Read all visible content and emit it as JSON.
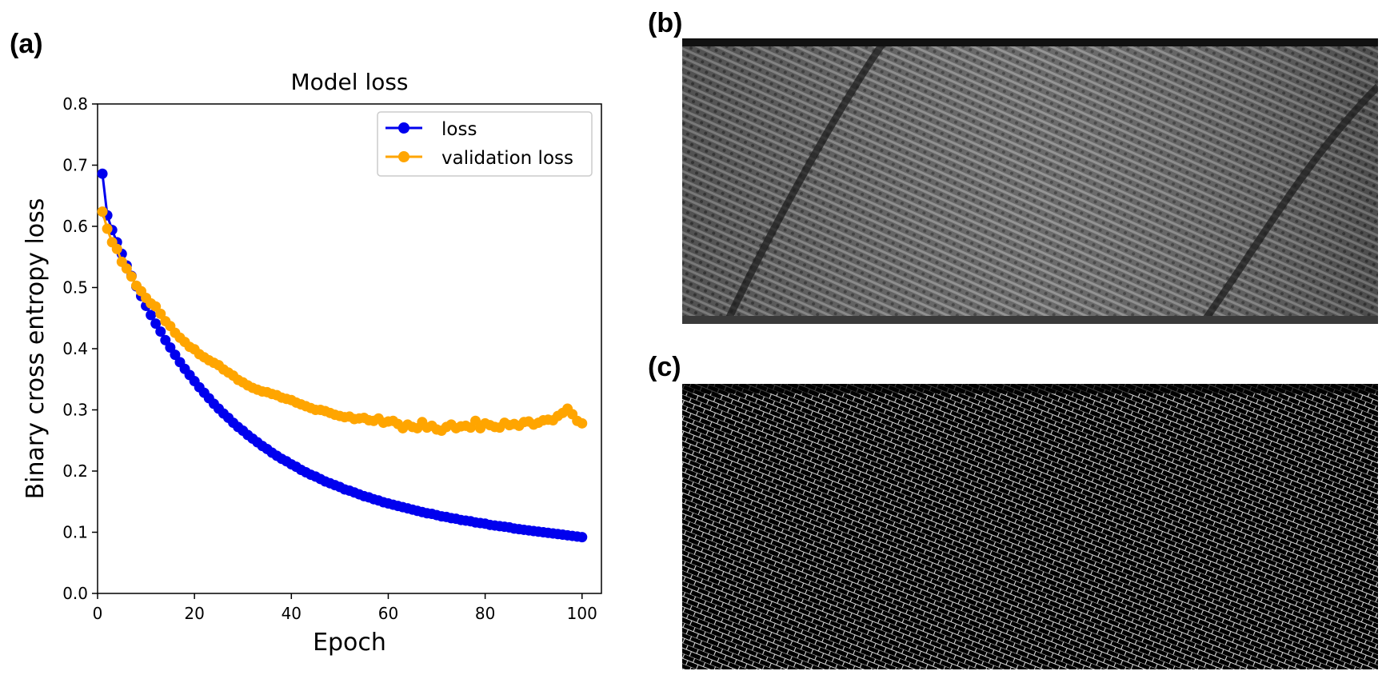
{
  "panels": {
    "a": {
      "label": "(a)"
    },
    "b": {
      "label": "(b)"
    },
    "c": {
      "label": "(c)"
    }
  },
  "chart_data": {
    "type": "line",
    "title": "Model loss",
    "xlabel": "Epoch",
    "ylabel": "Binary cross entropy loss",
    "xlim": [
      0,
      104
    ],
    "ylim": [
      0,
      0.8
    ],
    "xticks": [
      0,
      20,
      40,
      60,
      80,
      100
    ],
    "yticks": [
      0.0,
      0.1,
      0.2,
      0.3,
      0.4,
      0.5,
      0.6,
      0.7,
      0.8
    ],
    "grid": false,
    "legend": "top-right",
    "markers": true,
    "series": [
      {
        "name": "loss",
        "color": "#0000ee",
        "x": [
          1,
          2,
          3,
          4,
          5,
          6,
          7,
          8,
          9,
          10,
          11,
          12,
          13,
          14,
          15,
          16,
          17,
          18,
          19,
          20,
          21,
          22,
          23,
          24,
          25,
          26,
          27,
          28,
          29,
          30,
          31,
          32,
          33,
          34,
          35,
          36,
          37,
          38,
          39,
          40,
          41,
          42,
          43,
          44,
          45,
          46,
          47,
          48,
          49,
          50,
          51,
          52,
          53,
          54,
          55,
          56,
          57,
          58,
          59,
          60,
          61,
          62,
          63,
          64,
          65,
          66,
          67,
          68,
          69,
          70,
          71,
          72,
          73,
          74,
          75,
          76,
          77,
          78,
          79,
          80,
          81,
          82,
          83,
          84,
          85,
          86,
          87,
          88,
          89,
          90,
          91,
          92,
          93,
          94,
          95,
          96,
          97,
          98,
          99,
          100
        ],
        "y": [
          0.686,
          0.618,
          0.594,
          0.574,
          0.555,
          0.536,
          0.519,
          0.502,
          0.486,
          0.47,
          0.455,
          0.441,
          0.428,
          0.414,
          0.402,
          0.39,
          0.378,
          0.367,
          0.357,
          0.347,
          0.337,
          0.328,
          0.319,
          0.31,
          0.302,
          0.294,
          0.287,
          0.279,
          0.272,
          0.266,
          0.259,
          0.253,
          0.247,
          0.241,
          0.236,
          0.23,
          0.225,
          0.22,
          0.216,
          0.211,
          0.207,
          0.202,
          0.198,
          0.194,
          0.191,
          0.187,
          0.183,
          0.18,
          0.177,
          0.174,
          0.17,
          0.168,
          0.165,
          0.162,
          0.159,
          0.157,
          0.154,
          0.152,
          0.149,
          0.147,
          0.145,
          0.143,
          0.141,
          0.139,
          0.137,
          0.135,
          0.133,
          0.131,
          0.13,
          0.128,
          0.126,
          0.125,
          0.123,
          0.122,
          0.12,
          0.119,
          0.118,
          0.116,
          0.115,
          0.114,
          0.112,
          0.111,
          0.11,
          0.109,
          0.108,
          0.106,
          0.105,
          0.104,
          0.103,
          0.102,
          0.101,
          0.1,
          0.099,
          0.098,
          0.097,
          0.096,
          0.095,
          0.094,
          0.093,
          0.092
        ]
      },
      {
        "name": "validation loss",
        "color": "#ffa500",
        "x": [
          1,
          2,
          3,
          4,
          5,
          6,
          7,
          8,
          9,
          10,
          11,
          12,
          13,
          14,
          15,
          16,
          17,
          18,
          19,
          20,
          21,
          22,
          23,
          24,
          25,
          26,
          27,
          28,
          29,
          30,
          31,
          32,
          33,
          34,
          35,
          36,
          37,
          38,
          39,
          40,
          41,
          42,
          43,
          44,
          45,
          46,
          47,
          48,
          49,
          50,
          51,
          52,
          53,
          54,
          55,
          56,
          57,
          58,
          59,
          60,
          61,
          62,
          63,
          64,
          65,
          66,
          67,
          68,
          69,
          70,
          71,
          72,
          73,
          74,
          75,
          76,
          77,
          78,
          79,
          80,
          81,
          82,
          83,
          84,
          85,
          86,
          87,
          88,
          89,
          90,
          91,
          92,
          93,
          94,
          95,
          96,
          97,
          98,
          99,
          100
        ],
        "y": [
          0.624,
          0.596,
          0.574,
          0.563,
          0.542,
          0.531,
          0.518,
          0.503,
          0.494,
          0.483,
          0.474,
          0.469,
          0.457,
          0.445,
          0.437,
          0.426,
          0.418,
          0.411,
          0.403,
          0.399,
          0.391,
          0.386,
          0.381,
          0.377,
          0.373,
          0.366,
          0.361,
          0.356,
          0.349,
          0.345,
          0.34,
          0.336,
          0.333,
          0.33,
          0.329,
          0.326,
          0.324,
          0.32,
          0.318,
          0.316,
          0.312,
          0.309,
          0.306,
          0.303,
          0.3,
          0.3,
          0.298,
          0.295,
          0.292,
          0.29,
          0.288,
          0.289,
          0.285,
          0.286,
          0.287,
          0.283,
          0.282,
          0.286,
          0.279,
          0.281,
          0.282,
          0.277,
          0.27,
          0.276,
          0.272,
          0.27,
          0.28,
          0.271,
          0.274,
          0.268,
          0.266,
          0.272,
          0.276,
          0.27,
          0.273,
          0.274,
          0.271,
          0.282,
          0.27,
          0.278,
          0.275,
          0.272,
          0.271,
          0.279,
          0.275,
          0.277,
          0.274,
          0.28,
          0.281,
          0.276,
          0.279,
          0.283,
          0.284,
          0.283,
          0.29,
          0.295,
          0.302,
          0.293,
          0.282,
          0.278
        ]
      }
    ]
  }
}
